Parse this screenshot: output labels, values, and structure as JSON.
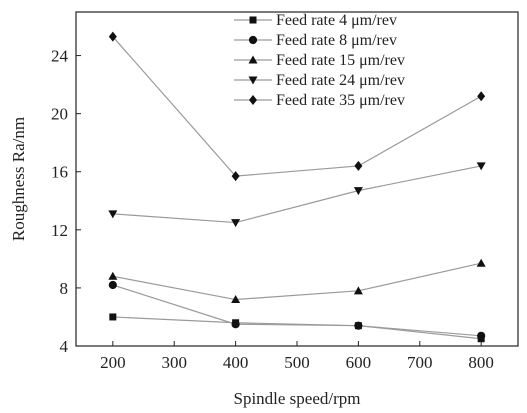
{
  "chart_data": {
    "type": "line",
    "xlabel": "Spindle speed/rpm",
    "ylabel": "Roughness Ra/nm",
    "xlim": [
      140,
      860
    ],
    "ylim": [
      4,
      27
    ],
    "xticks": [
      200,
      300,
      400,
      500,
      600,
      700,
      800
    ],
    "yticks": [
      4,
      8,
      12,
      16,
      20,
      24
    ],
    "grid": false,
    "legend_position": "top-right",
    "line_color": "#9a9a9a",
    "marker_color": "#111111",
    "x": [
      200,
      400,
      600,
      800
    ],
    "series": [
      {
        "name": "Feed rate 4 μm/rev",
        "marker": "square",
        "values": [
          6.0,
          5.6,
          5.4,
          4.5
        ]
      },
      {
        "name": "Feed rate 8 μm/rev",
        "marker": "circle",
        "values": [
          8.2,
          5.5,
          5.4,
          4.7
        ]
      },
      {
        "name": "Feed rate 15 μm/rev",
        "marker": "triangle-up",
        "values": [
          8.8,
          7.2,
          7.8,
          9.7
        ]
      },
      {
        "name": "Feed rate 24 μm/rev",
        "marker": "triangle-down",
        "values": [
          13.1,
          12.5,
          14.7,
          16.4
        ]
      },
      {
        "name": "Feed rate 35 μm/rev",
        "marker": "diamond",
        "values": [
          25.3,
          15.7,
          16.4,
          21.2
        ]
      }
    ]
  }
}
